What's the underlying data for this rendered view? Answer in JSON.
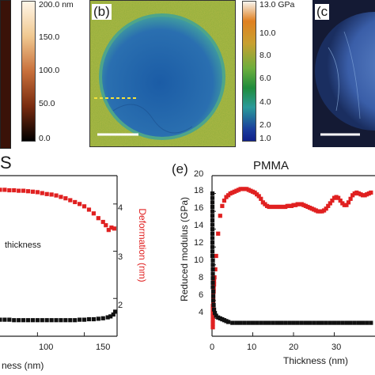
{
  "panel_a": {
    "colorbar_ticks": [
      "200.0 nm",
      "150.0",
      "100.0",
      "50.0",
      "0.0"
    ]
  },
  "panel_b": {
    "letter": "(b)",
    "colorbar_ticks": [
      "13.0 GPa",
      "10.0",
      "8.0",
      "6.0",
      "4.0",
      "2.0",
      "1.0"
    ],
    "colors": {
      "substrate": "#8fae3c",
      "flake": "#1f5fa8",
      "rim": "#4ea58a"
    }
  },
  "panel_c": {
    "letter": "(c"
  },
  "panel_d": {
    "title_fragment": "S",
    "ylabel_right": "Deformation (nm)",
    "legend_fragment": "thickness",
    "x_ticks": [
      "100",
      "150"
    ],
    "yright_ticks": [
      "4",
      "3",
      "2"
    ],
    "xlabel_fragment": "ness (nm)",
    "colors": {
      "deformation": "#e02020",
      "modulus": "#111111"
    }
  },
  "panel_e": {
    "letter": "(e)",
    "title": "PMMA",
    "ylabel": "Reduced modulus (GPa)",
    "xlabel": "Thickness (nm)",
    "y_ticks": [
      "20",
      "18",
      "16",
      "14",
      "12",
      "10",
      "8",
      "6",
      "4"
    ],
    "x_ticks": [
      "0",
      "10",
      "20",
      "30"
    ],
    "colors": {
      "red": "#e02020",
      "black": "#111111"
    }
  },
  "chart_data": [
    {
      "type": "scatter",
      "panel": "d",
      "ylabel": "Deformation (nm)",
      "xlim": [
        60,
        185
      ],
      "series": [
        {
          "x": [
            60,
            65,
            70,
            75,
            80,
            85,
            90,
            95,
            100,
            105,
            110,
            115,
            120,
            125,
            130,
            135,
            140,
            145,
            150,
            155,
            160,
            165,
            170,
            173,
            176,
            179,
            182
          ],
          "values": [
            4.3,
            4.3,
            4.29,
            4.29,
            4.28,
            4.28,
            4.27,
            4.26,
            4.25,
            4.23,
            4.21,
            4.2,
            4.18,
            4.15,
            4.12,
            4.08,
            4.04,
            4.0,
            3.95,
            3.88,
            3.8,
            3.7,
            3.62,
            3.55,
            3.45,
            3.5,
            3.48
          ]
        },
        {
          "x": [
            60,
            65,
            70,
            75,
            80,
            85,
            90,
            95,
            100,
            105,
            110,
            115,
            120,
            125,
            130,
            135,
            140,
            145,
            150,
            155,
            160,
            165,
            170,
            175,
            178,
            181,
            183
          ],
          "values": [
            1.55,
            1.55,
            1.55,
            1.54,
            1.54,
            1.54,
            1.54,
            1.54,
            1.54,
            1.54,
            1.54,
            1.54,
            1.54,
            1.54,
            1.54,
            1.54,
            1.54,
            1.55,
            1.55,
            1.56,
            1.56,
            1.57,
            1.58,
            1.6,
            1.62,
            1.66,
            1.72
          ]
        }
      ]
    },
    {
      "type": "scatter",
      "panel": "e",
      "title": "PMMA",
      "xlabel": "Thickness (nm)",
      "ylabel": "Reduced modulus (GPa)",
      "xlim": [
        0,
        40
      ],
      "ylim": [
        2,
        20
      ],
      "series": [
        {
          "color": "red",
          "x": [
            0.2,
            0.2,
            0.2,
            0.2,
            0.2,
            0.2,
            0.2,
            0.3,
            0.3,
            0.3,
            0.4,
            0.4,
            0.5,
            0.5,
            0.6,
            0.8,
            1.0,
            1.5,
            2.0,
            2.5,
            3.0,
            3.5,
            4.0,
            4.5,
            5.0,
            5.5,
            6.0,
            6.5,
            7.0,
            7.5,
            8.0,
            8.5,
            9.0,
            9.5,
            10.0,
            10.5,
            11.0,
            11.5,
            12.0,
            12.5,
            13.0,
            13.5,
            14.0,
            14.5,
            15.0,
            15.5,
            16.0,
            16.5,
            17.0,
            17.5,
            18.0,
            18.5,
            19.0,
            19.5,
            20.0,
            20.5,
            21.0,
            21.5,
            22.0,
            22.5,
            23.0,
            23.5,
            24.0,
            24.5,
            25.0,
            25.5,
            26.0,
            26.5,
            27.0,
            27.5,
            28.0,
            28.5,
            29.0,
            29.5,
            30.0,
            30.5,
            31.0,
            31.5,
            32.0,
            32.5,
            33.0,
            33.5,
            34.0,
            34.5,
            35.0,
            35.5,
            36.0,
            36.5,
            37.0,
            37.5,
            38.0,
            38.5,
            39.0,
            39.5
          ],
          "values": [
            3.0,
            3.4,
            3.8,
            4.2,
            4.6,
            5.0,
            5.4,
            5.8,
            6.2,
            6.6,
            7.0,
            7.4,
            7.8,
            8.2,
            8.6,
            9.5,
            11.0,
            13.5,
            15.5,
            16.6,
            17.2,
            17.6,
            17.8,
            18.0,
            18.1,
            18.2,
            18.3,
            18.4,
            18.5,
            18.5,
            18.5,
            18.5,
            18.4,
            18.3,
            18.2,
            18.1,
            17.9,
            17.7,
            17.4,
            17.0,
            16.8,
            16.6,
            16.5,
            16.5,
            16.5,
            16.5,
            16.5,
            16.5,
            16.5,
            16.5,
            16.5,
            16.6,
            16.6,
            16.6,
            16.7,
            16.7,
            16.8,
            16.8,
            16.8,
            16.7,
            16.6,
            16.5,
            16.4,
            16.3,
            16.2,
            16.1,
            16.0,
            16.0,
            16.0,
            16.1,
            16.3,
            16.6,
            16.9,
            17.2,
            17.5,
            17.6,
            17.5,
            17.2,
            16.9,
            16.7,
            16.7,
            17.0,
            17.4,
            17.8,
            18.0,
            18.1,
            18.0,
            17.9,
            17.8,
            17.8,
            17.9,
            18.0,
            18.1,
            18.2
          ]
        },
        {
          "color": "black",
          "x": [
            0.1,
            0.1,
            0.1,
            0.1,
            0.1,
            0.1,
            0.1,
            0.1,
            0.1,
            0.1,
            0.1,
            0.1,
            0.1,
            0.1,
            0.1,
            0.2,
            0.2,
            0.2,
            0.2,
            0.2,
            0.2,
            0.2,
            0.3,
            0.3,
            0.3,
            0.4,
            0.5,
            0.7,
            1.0,
            1.5,
            2.0,
            2.5,
            3.0,
            3.5,
            4.0,
            5.0,
            6.0,
            7.0,
            8.0,
            9.0,
            10.0,
            11.0,
            12.0,
            13.0,
            14.0,
            15.0,
            16.0,
            17.0,
            18.0,
            19.0,
            20.0,
            21.0,
            22.0,
            23.0,
            24.0,
            25.0,
            26.0,
            27.0,
            28.0,
            29.0,
            30.0,
            31.0,
            32.0,
            33.0,
            34.0,
            35.0,
            36.0,
            37.0,
            38.0,
            39.0
          ],
          "values": [
            18.0,
            17.5,
            17.0,
            16.5,
            16.0,
            15.5,
            15.0,
            14.5,
            14.0,
            13.5,
            13.0,
            12.5,
            12.0,
            11.5,
            11.0,
            10.5,
            10.0,
            9.5,
            9.0,
            8.5,
            8.0,
            7.5,
            7.0,
            6.5,
            6.0,
            5.5,
            5.0,
            4.6,
            4.3,
            4.1,
            4.0,
            3.9,
            3.8,
            3.7,
            3.6,
            3.5,
            3.5,
            3.5,
            3.5,
            3.5,
            3.5,
            3.5,
            3.5,
            3.5,
            3.5,
            3.5,
            3.5,
            3.5,
            3.5,
            3.5,
            3.5,
            3.5,
            3.5,
            3.5,
            3.5,
            3.5,
            3.5,
            3.5,
            3.5,
            3.5,
            3.5,
            3.5,
            3.5,
            3.5,
            3.5,
            3.5,
            3.5,
            3.5,
            3.5,
            3.5
          ]
        }
      ]
    }
  ]
}
